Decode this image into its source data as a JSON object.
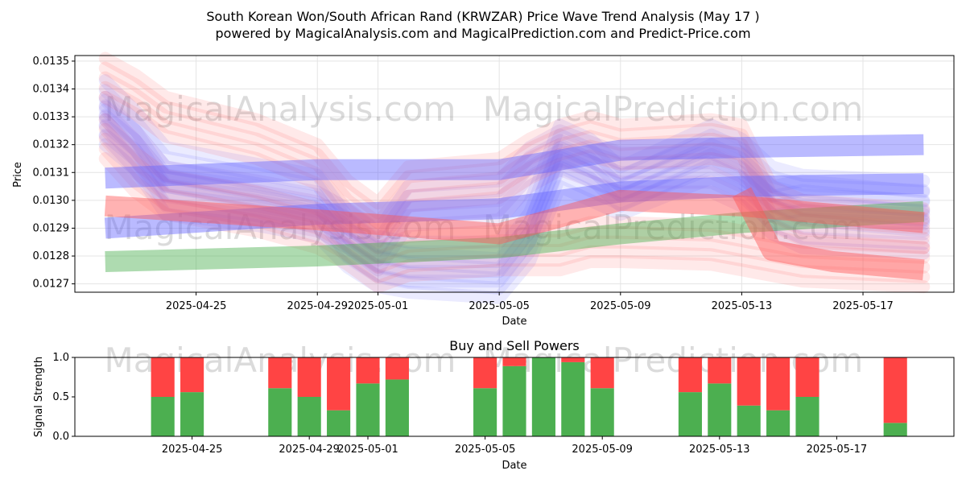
{
  "title": "South Korean Won/South African Rand (KRWZAR) Price Wave Trend Analysis (May 17 )",
  "subtitle": "powered by MagicalAnalysis.com and MagicalPrediction.com and Predict-Price.com",
  "watermarks": [
    "MagicalAnalysis.com",
    "MagicalPrediction.com"
  ],
  "colors": {
    "blue": "#6666ff",
    "red": "#ff5555",
    "green": "#4caf50",
    "purple": "#9955cc",
    "buy": "#4caf50",
    "sell": "#ff4444"
  },
  "chart_data": [
    {
      "type": "area",
      "title": "",
      "xlabel": "Date",
      "ylabel": "Price",
      "x_ticks": [
        "2025-04-25",
        "2025-04-29",
        "2025-05-01",
        "2025-05-05",
        "2025-05-09",
        "2025-05-13",
        "2025-05-17"
      ],
      "y_ticks": [
        "0.0127",
        "0.0128",
        "0.0129",
        "0.0130",
        "0.0131",
        "0.0132",
        "0.0133",
        "0.0134",
        "0.0135"
      ],
      "xlim": [
        "2025-04-21",
        "2025-05-20"
      ],
      "ylim": [
        0.01267,
        0.01352
      ],
      "grid": true,
      "series": [
        {
          "color": "blue",
          "points": [
            [
              "2025-04-22",
              0.01336
            ],
            [
              "2025-04-23",
              0.01325
            ],
            [
              "2025-04-24",
              0.01312
            ],
            [
              "2025-04-27",
              0.01306
            ],
            [
              "2025-04-29",
              0.01302
            ],
            [
              "2025-04-30",
              0.01287
            ],
            [
              "2025-05-01",
              0.0128
            ],
            [
              "2025-05-02",
              0.01278
            ],
            [
              "2025-05-05",
              0.01278
            ],
            [
              "2025-05-06",
              0.01292
            ],
            [
              "2025-05-07",
              0.0132
            ],
            [
              "2025-05-08",
              0.01315
            ],
            [
              "2025-05-09",
              0.01305
            ],
            [
              "2025-05-12",
              0.0132
            ],
            [
              "2025-05-13",
              0.01315
            ],
            [
              "2025-05-14",
              0.01305
            ],
            [
              "2025-05-15",
              0.01302
            ],
            [
              "2025-05-19",
              0.013
            ]
          ]
        },
        {
          "color": "blue",
          "points": [
            [
              "2025-04-22",
              0.01327
            ],
            [
              "2025-04-23",
              0.01318
            ],
            [
              "2025-04-24",
              0.01302
            ],
            [
              "2025-04-27",
              0.01298
            ],
            [
              "2025-04-29",
              0.01294
            ],
            [
              "2025-04-30",
              0.01283
            ],
            [
              "2025-05-01",
              0.01276
            ],
            [
              "2025-05-02",
              0.01274
            ],
            [
              "2025-05-05",
              0.01272
            ],
            [
              "2025-05-06",
              0.01285
            ],
            [
              "2025-05-07",
              0.01312
            ],
            [
              "2025-05-09",
              0.01302
            ],
            [
              "2025-05-12",
              0.01315
            ],
            [
              "2025-05-13",
              0.0131
            ],
            [
              "2025-05-14",
              0.01298
            ],
            [
              "2025-05-15",
              0.013
            ],
            [
              "2025-05-19",
              0.01296
            ]
          ]
        },
        {
          "color": "red",
          "points": [
            [
              "2025-04-22",
              0.01344
            ],
            [
              "2025-04-23",
              0.01338
            ],
            [
              "2025-04-24",
              0.0133
            ],
            [
              "2025-04-27",
              0.01322
            ],
            [
              "2025-04-29",
              0.01313
            ],
            [
              "2025-04-30",
              0.013
            ],
            [
              "2025-05-01",
              0.01292
            ],
            [
              "2025-05-02",
              0.01305
            ],
            [
              "2025-05-05",
              0.01308
            ],
            [
              "2025-05-06",
              0.01315
            ],
            [
              "2025-05-07",
              0.0132
            ],
            [
              "2025-05-08",
              0.01323
            ],
            [
              "2025-05-09",
              0.0132
            ],
            [
              "2025-05-12",
              0.01322
            ],
            [
              "2025-05-13",
              0.0132
            ],
            [
              "2025-05-14",
              0.01298
            ],
            [
              "2025-05-15",
              0.01293
            ],
            [
              "2025-05-19",
              0.0129
            ]
          ]
        },
        {
          "color": "red",
          "points": [
            [
              "2025-04-22",
              0.01322
            ],
            [
              "2025-04-23",
              0.0131
            ],
            [
              "2025-04-24",
              0.01302
            ],
            [
              "2025-04-27",
              0.01296
            ],
            [
              "2025-04-29",
              0.0129
            ],
            [
              "2025-04-30",
              0.01284
            ],
            [
              "2025-05-01",
              0.01276
            ],
            [
              "2025-05-02",
              0.0128
            ],
            [
              "2025-05-05",
              0.01282
            ],
            [
              "2025-05-06",
              0.01282
            ],
            [
              "2025-05-07",
              0.01282
            ],
            [
              "2025-05-08",
              0.01285
            ],
            [
              "2025-05-09",
              0.01285
            ],
            [
              "2025-05-12",
              0.01284
            ],
            [
              "2025-05-13",
              0.01282
            ],
            [
              "2025-05-14",
              0.0128
            ],
            [
              "2025-05-15",
              0.01278
            ],
            [
              "2025-05-19",
              0.01276
            ]
          ]
        },
        {
          "color": "purple",
          "points": [
            [
              "2025-04-22",
              0.0133
            ],
            [
              "2025-04-23",
              0.01318
            ],
            [
              "2025-04-24",
              0.01305
            ],
            [
              "2025-04-27",
              0.013
            ],
            [
              "2025-04-29",
              0.01296
            ],
            [
              "2025-04-30",
              0.0129
            ],
            [
              "2025-05-01",
              0.01282
            ],
            [
              "2025-05-02",
              0.01298
            ],
            [
              "2025-05-05",
              0.013
            ],
            [
              "2025-05-06",
              0.01312
            ],
            [
              "2025-05-07",
              0.01318
            ],
            [
              "2025-05-09",
              0.0131
            ],
            [
              "2025-05-12",
              0.0131
            ],
            [
              "2025-05-13",
              0.01305
            ],
            [
              "2025-05-14",
              0.01295
            ],
            [
              "2025-05-15",
              0.0129
            ],
            [
              "2025-05-19",
              0.01288
            ]
          ]
        },
        {
          "color": "blue",
          "band": true,
          "points": [
            [
              "2025-04-22",
              0.0129
            ],
            [
              "2025-04-29",
              0.01295
            ],
            [
              "2025-05-05",
              0.01297
            ],
            [
              "2025-05-09",
              0.01303
            ],
            [
              "2025-05-13",
              0.01305
            ],
            [
              "2025-05-19",
              0.01306
            ]
          ]
        },
        {
          "color": "blue",
          "band": true,
          "points": [
            [
              "2025-04-22",
              0.01308
            ],
            [
              "2025-04-29",
              0.01311
            ],
            [
              "2025-05-05",
              0.01311
            ],
            [
              "2025-05-09",
              0.01318
            ],
            [
              "2025-05-13",
              0.01319
            ],
            [
              "2025-05-19",
              0.0132
            ]
          ]
        },
        {
          "color": "green",
          "band": true,
          "points": [
            [
              "2025-04-22",
              0.01278
            ],
            [
              "2025-04-29",
              0.0128
            ],
            [
              "2025-05-05",
              0.01283
            ],
            [
              "2025-05-09",
              0.01288
            ],
            [
              "2025-05-13",
              0.01292
            ],
            [
              "2025-05-19",
              0.01296
            ]
          ]
        },
        {
          "color": "red",
          "band": true,
          "points": [
            [
              "2025-05-13",
              0.01303
            ],
            [
              "2025-05-14",
              0.01282
            ],
            [
              "2025-05-16",
              0.01278
            ],
            [
              "2025-05-19",
              0.01275
            ]
          ]
        },
        {
          "color": "red",
          "band": true,
          "points": [
            [
              "2025-04-22",
              0.01298
            ],
            [
              "2025-04-29",
              0.01293
            ],
            [
              "2025-05-05",
              0.01288
            ],
            [
              "2025-05-09",
              0.013
            ],
            [
              "2025-05-13",
              0.01298
            ],
            [
              "2025-05-19",
              0.01292
            ]
          ]
        }
      ]
    },
    {
      "type": "bar",
      "title": "Buy and Sell Powers",
      "xlabel": "Date",
      "ylabel": "Signal Strength",
      "x_ticks": [
        "2025-04-25",
        "2025-04-29",
        "2025-05-01",
        "2025-05-05",
        "2025-05-09",
        "2025-05-13",
        "2025-05-17"
      ],
      "y_ticks": [
        "0.0",
        "0.5",
        "1.0"
      ],
      "ylim": [
        0,
        1
      ],
      "categories": [
        "2025-04-24",
        "2025-04-25",
        "2025-04-28",
        "2025-04-29",
        "2025-04-30",
        "2025-05-01",
        "2025-05-02",
        "2025-05-05",
        "2025-05-06",
        "2025-05-07",
        "2025-05-08",
        "2025-05-09",
        "2025-05-12",
        "2025-05-13",
        "2025-05-14",
        "2025-05-15",
        "2025-05-16",
        "2025-05-19"
      ],
      "series": [
        {
          "name": "Buy",
          "values": [
            0.5,
            0.56,
            0.61,
            0.5,
            0.33,
            0.67,
            0.72,
            0.61,
            0.89,
            1.0,
            0.94,
            0.61,
            0.56,
            0.67,
            0.39,
            0.33,
            0.5,
            0.17
          ]
        },
        {
          "name": "Sell",
          "values": [
            0.5,
            0.44,
            0.39,
            0.5,
            0.67,
            0.33,
            0.28,
            0.39,
            0.11,
            0.0,
            0.06,
            0.39,
            0.44,
            0.33,
            0.61,
            0.67,
            0.5,
            0.83
          ]
        }
      ]
    }
  ]
}
